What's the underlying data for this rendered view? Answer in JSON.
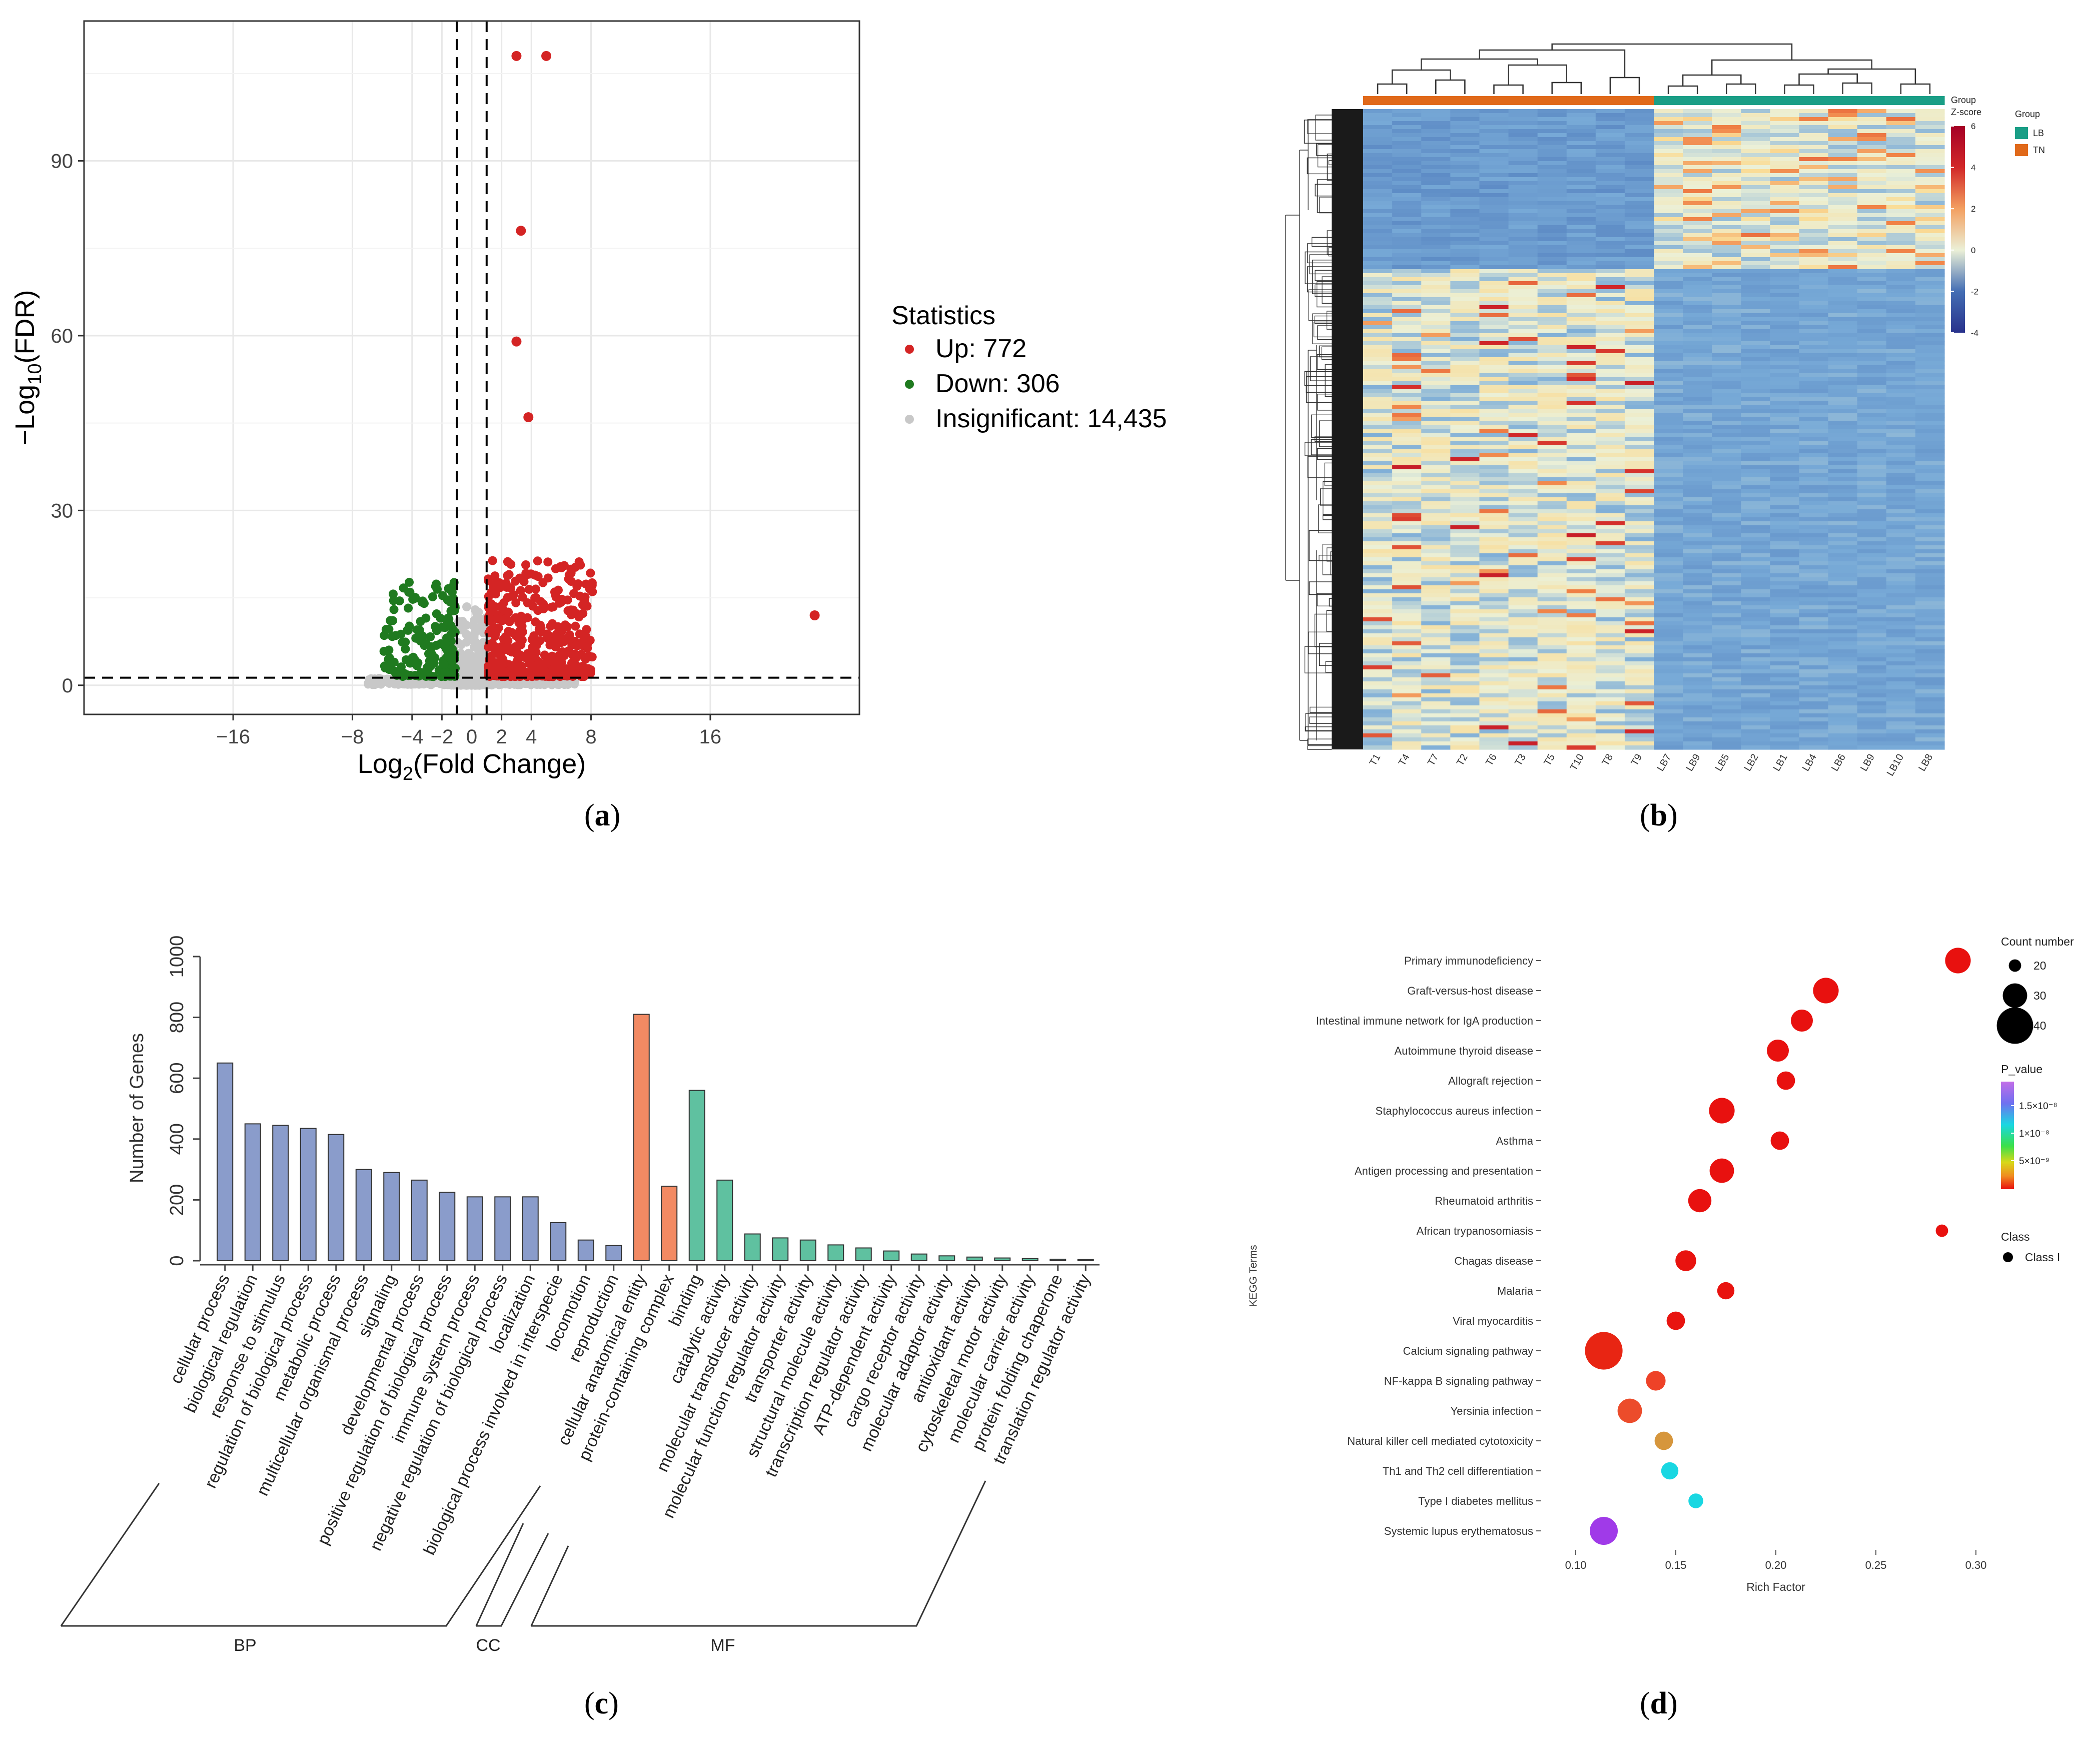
{
  "figure_captions": {
    "a": "a",
    "b": "b",
    "c": "c",
    "d": "d"
  },
  "colors": {
    "up": "#d42424",
    "down": "#1f7a1f",
    "insignificant": "#c8c8c8",
    "bp": "#8a9ccb",
    "cc": "#f28a63",
    "mf": "#5fc1a0",
    "group_tn": "#e0691a",
    "group_lb": "#1a9e86"
  },
  "chart_data": [
    {
      "id": "a",
      "type": "scatter",
      "title": "",
      "xlabel_main": "Log",
      "xlabel_sub": "2",
      "xlabel_rest": "(Fold Change)",
      "ylabel_main": "−Log",
      "ylabel_sub": "10",
      "ylabel_rest": "(FDR)",
      "xlim": [
        -26,
        26
      ],
      "ylim": [
        -5,
        114
      ],
      "xticks": [
        -16,
        -8,
        -4,
        -2,
        0,
        2,
        4,
        8,
        16
      ],
      "xtick_labels": [
        "−16",
        "−8",
        "−4",
        "−2",
        "0",
        "2",
        "4",
        "8",
        "16"
      ],
      "yticks": [
        0,
        30,
        60,
        90
      ],
      "ytick_labels": [
        "0",
        "30",
        "60",
        "90"
      ],
      "vlines": [
        -1,
        1
      ],
      "hline": 1.3,
      "legend_title": "Statistics",
      "legend": [
        "Up: 772",
        "Down: 306",
        "Insignificant: 14,435"
      ],
      "labeled_outliers": [
        [
          3,
          108
        ],
        [
          5,
          108
        ],
        [
          3.3,
          78
        ],
        [
          3,
          59
        ],
        [
          3.8,
          46
        ],
        [
          23,
          12
        ]
      ]
    },
    {
      "id": "b",
      "type": "heatmap",
      "columns": [
        "T1",
        "T4",
        "T7",
        "T2",
        "T6",
        "T3",
        "T5",
        "T10",
        "T8",
        "T9",
        "LB7",
        "LB9",
        "LB5",
        "LB2",
        "LB1",
        "LB4",
        "LB6",
        "LB9",
        "LB10",
        "LB8"
      ],
      "column_groups": [
        "TN",
        "TN",
        "TN",
        "TN",
        "TN",
        "TN",
        "TN",
        "TN",
        "TN",
        "TN",
        "LB",
        "LB",
        "LB",
        "LB",
        "LB",
        "LB",
        "LB",
        "LB",
        "LB",
        "LB"
      ],
      "annotation_label": "Group",
      "colorbar_title": "Z-score",
      "colorbar_range": [
        -4,
        6
      ],
      "colorbar_ticks": [
        "6",
        "4",
        "2",
        "0",
        "-2",
        "-4"
      ],
      "legend_title": "Group",
      "legend": [
        "LB",
        "TN"
      ]
    },
    {
      "id": "c",
      "type": "bar",
      "ylabel": "Number of Genes",
      "ylim": [
        0,
        1000
      ],
      "yticks": [
        "0",
        "200",
        "400",
        "600",
        "800",
        "1000"
      ],
      "categories": [
        "cellular process",
        "biological regulation",
        "response to stimulus",
        "regulation of biological process",
        "metabolic process",
        "multicellular organismal process",
        "signaling",
        "developmental process",
        "positive regulation of biological process",
        "immune system process",
        "negative regulation of biological process",
        "localization",
        "biological process involved in interspecie",
        "locomotion",
        "reproduction",
        "cellular anatomical entity",
        "protein-containing complex",
        "binding",
        "catalytic activity",
        "molecular transducer activity",
        "molecular function regulator activity",
        "transporter activity",
        "structural molecule activity",
        "transcription regulator activity",
        "ATP-dependent activity",
        "cargo receptor activity",
        "molecular adaptor activity",
        "antioxidant activity",
        "cytoskeletal motor activity",
        "molecular carrier activity",
        "protein folding chaperone",
        "translation regulator activity"
      ],
      "values": [
        650,
        450,
        445,
        435,
        415,
        300,
        290,
        265,
        225,
        210,
        210,
        210,
        125,
        68,
        50,
        810,
        245,
        560,
        265,
        88,
        75,
        68,
        52,
        42,
        32,
        22,
        16,
        12,
        9,
        7,
        5,
        4
      ],
      "groups": [
        "BP",
        "BP",
        "BP",
        "BP",
        "BP",
        "BP",
        "BP",
        "BP",
        "BP",
        "BP",
        "BP",
        "BP",
        "BP",
        "BP",
        "BP",
        "CC",
        "CC",
        "MF",
        "MF",
        "MF",
        "MF",
        "MF",
        "MF",
        "MF",
        "MF",
        "MF",
        "MF",
        "MF",
        "MF",
        "MF",
        "MF",
        "MF"
      ],
      "group_labels": [
        "BP",
        "CC",
        "MF"
      ]
    },
    {
      "id": "d",
      "type": "scatter",
      "xlabel": "Rich Factor",
      "ylabel": "KEGG Terms",
      "xlim": [
        0.085,
        0.305
      ],
      "xticks": [
        "0.10",
        "0.15",
        "0.20",
        "0.25",
        "0.30"
      ],
      "terms": [
        "Primary immunodeficiency",
        "Graft-versus-host disease",
        "Intestinal immune network for IgA production",
        "Autoimmune thyroid disease",
        "Allograft rejection",
        "Staphylococcus aureus infection",
        "Asthma",
        "Antigen processing and presentation",
        "Rheumatoid arthritis",
        "African trypanosomiasis",
        "Chagas disease",
        "Malaria",
        "Viral myocarditis",
        "Calcium signaling pathway",
        "NF-kappa B signaling pathway",
        "Yersinia infection",
        "Natural killer cell mediated cytotoxicity",
        "Th1 and Th2 cell differentiation",
        "Type I diabetes mellitus",
        "Systemic lupus erythematosus"
      ],
      "rich_factor": [
        0.291,
        0.225,
        0.213,
        0.201,
        0.205,
        0.173,
        0.202,
        0.173,
        0.162,
        0.283,
        0.155,
        0.175,
        0.15,
        0.114,
        0.14,
        0.127,
        0.144,
        0.147,
        0.16,
        0.114
      ],
      "count": [
        31,
        31,
        28,
        28,
        25,
        31,
        25,
        30,
        29,
        20,
        27,
        24,
        25,
        41,
        26,
        30,
        25,
        24,
        22,
        33
      ],
      "colors": [
        "#e8110f",
        "#e8110f",
        "#e8110f",
        "#e8110f",
        "#e8110f",
        "#e8110f",
        "#e8110f",
        "#e8110f",
        "#e8110f",
        "#e8110f",
        "#e8130f",
        "#e8130f",
        "#e81410",
        "#e82513",
        "#ee4228",
        "#ec4c2b",
        "#d6963c",
        "#19d7e2",
        "#19d7e2",
        "#a03ae8"
      ],
      "size_legend_title": "Count number",
      "size_legend": [
        "20",
        "30",
        "40"
      ],
      "color_legend_title": "P_value",
      "color_legend_ticks": [
        "1.5×10⁻⁸",
        "1×10⁻⁸",
        "5×10⁻⁹"
      ],
      "class_legend_title": "Class",
      "class_legend": [
        "Class I"
      ]
    }
  ]
}
